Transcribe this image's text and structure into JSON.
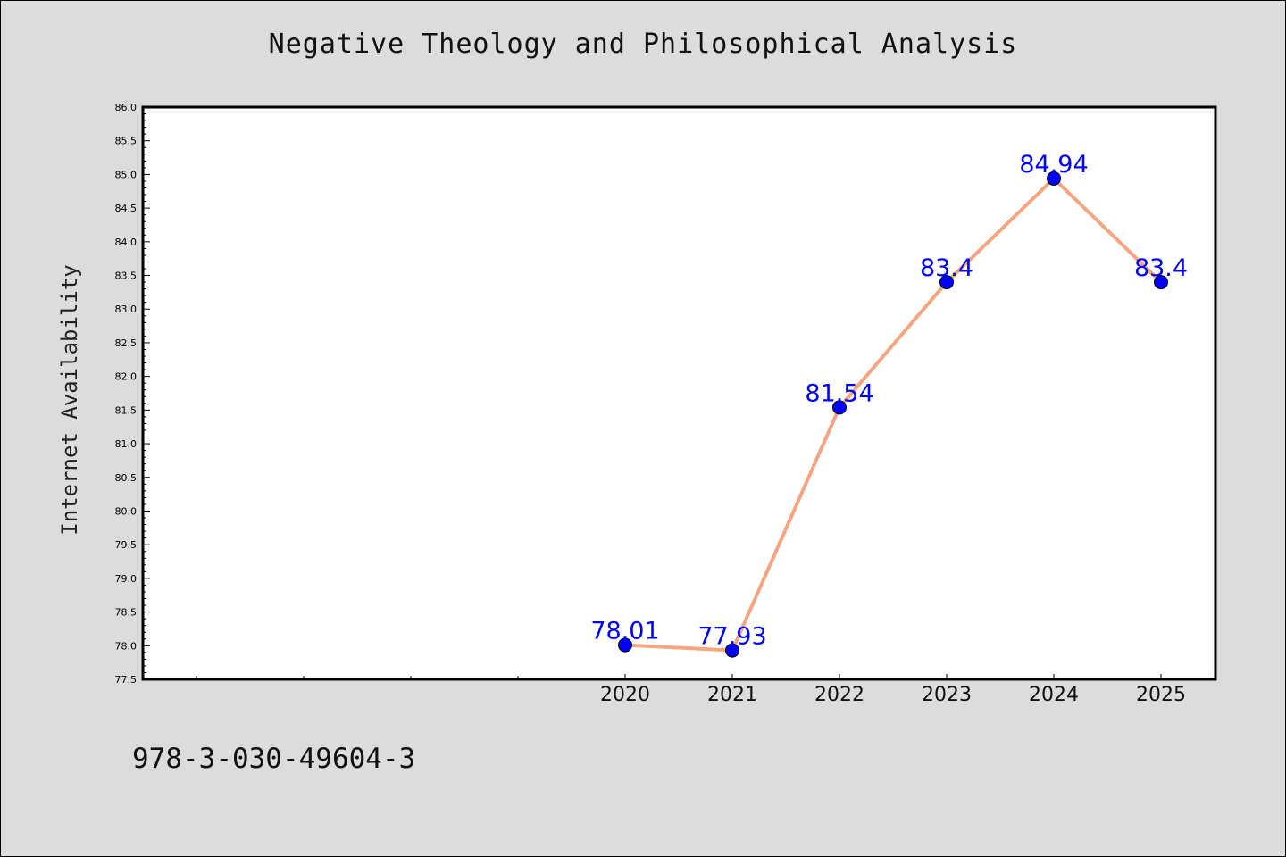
{
  "chart_data": {
    "type": "line",
    "title": "Negative Theology and Philosophical Analysis",
    "xlabel": "",
    "ylabel": "Internet Availability",
    "x": [
      "2020",
      "2021",
      "2022",
      "2023",
      "2024",
      "2025"
    ],
    "values": [
      78.01,
      77.93,
      81.54,
      83.4,
      84.94,
      83.4
    ],
    "value_labels": [
      "78.01",
      "77.93",
      "81.54",
      "83.4",
      "84.94",
      "83.4"
    ],
    "ylim": [
      77.5,
      86.0
    ],
    "yticks": [
      "77.5",
      "78.0",
      "78.5",
      "79.0",
      "79.5",
      "80.0",
      "80.5",
      "81.0",
      "81.5",
      "82.0",
      "82.5",
      "83.0",
      "83.5",
      "84.0",
      "84.5",
      "85.0",
      "85.5",
      "86.0"
    ],
    "grid": false,
    "legend": "none"
  },
  "footer": {
    "code": "978-3-030-49604-3"
  },
  "colors": {
    "background": "#dcdcdc",
    "plot_area": "#ffffff",
    "line": "#f4a582",
    "marker": "#0000ff",
    "data_label": "#0000ff"
  }
}
